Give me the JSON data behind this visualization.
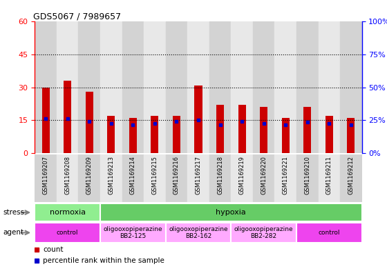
{
  "title": "GDS5067 / 7989657",
  "samples": [
    "GSM1169207",
    "GSM1169208",
    "GSM1169209",
    "GSM1169213",
    "GSM1169214",
    "GSM1169215",
    "GSM1169216",
    "GSM1169217",
    "GSM1169218",
    "GSM1169219",
    "GSM1169220",
    "GSM1169221",
    "GSM1169210",
    "GSM1169211",
    "GSM1169212"
  ],
  "count_values": [
    30,
    33,
    28,
    17,
    16,
    17,
    17,
    31,
    22,
    22,
    21,
    16,
    21,
    17,
    16
  ],
  "percentile_values": [
    26.0,
    26.0,
    24.0,
    22.5,
    21.5,
    22.5,
    24.0,
    25.0,
    21.5,
    24.0,
    22.5,
    21.5,
    23.5,
    22.5,
    21.5
  ],
  "ylim_left": [
    0,
    60
  ],
  "ylim_right": [
    0,
    100
  ],
  "yticks_left": [
    0,
    15,
    30,
    45,
    60
  ],
  "yticks_right": [
    0,
    25,
    50,
    75,
    100
  ],
  "stress_groups": [
    {
      "label": "normoxia",
      "start": 0,
      "end": 3,
      "color": "#90EE90"
    },
    {
      "label": "hypoxia",
      "start": 3,
      "end": 15,
      "color": "#66CC66"
    }
  ],
  "agent_groups": [
    {
      "label": "control",
      "start": 0,
      "end": 3,
      "color": "#EE44EE"
    },
    {
      "label": "oligooxopiperazine\nBB2-125",
      "start": 3,
      "end": 6,
      "color": "#FFAAFF"
    },
    {
      "label": "oligooxopiperazine\nBB2-162",
      "start": 6,
      "end": 9,
      "color": "#FFAAFF"
    },
    {
      "label": "oligooxopiperazine\nBB2-282",
      "start": 9,
      "end": 12,
      "color": "#FFAAFF"
    },
    {
      "label": "control",
      "start": 12,
      "end": 15,
      "color": "#EE44EE"
    }
  ],
  "bar_color": "#CC0000",
  "percentile_color": "#0000CC",
  "col_bg_even": "#D3D3D3",
  "col_bg_odd": "#E8E8E8"
}
